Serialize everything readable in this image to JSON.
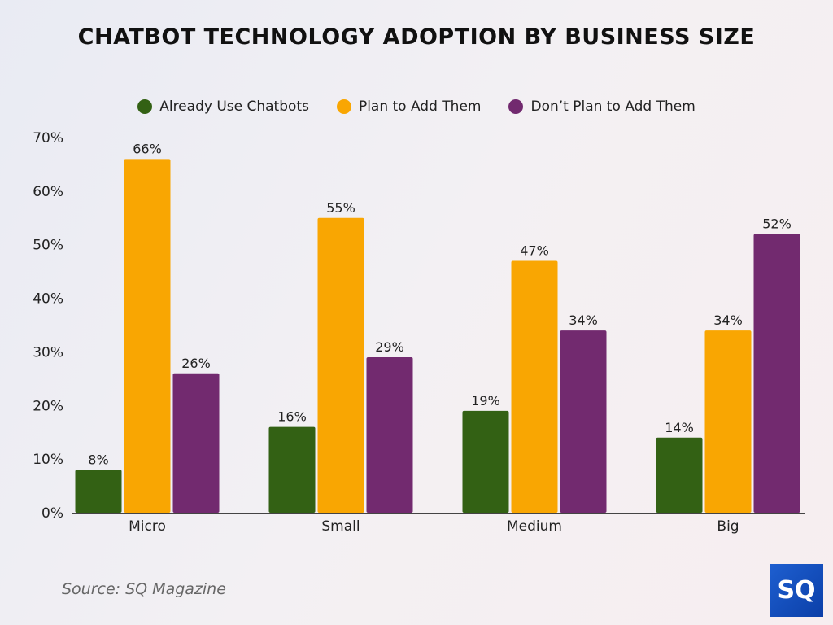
{
  "chart_data": {
    "type": "bar",
    "title": "CHATBOT TECHNOLOGY ADOPTION BY BUSINESS SIZE",
    "categories": [
      "Micro",
      "Small",
      "Medium",
      "Big"
    ],
    "series": [
      {
        "name": "Already Use Chatbots",
        "color": "#336114",
        "values": [
          8,
          16,
          19,
          14
        ]
      },
      {
        "name": "Plan to Add Them",
        "color": "#f9a602",
        "values": [
          66,
          55,
          47,
          34
        ]
      },
      {
        "name": "Don’t Plan to Add Them",
        "color": "#722a6f",
        "values": [
          26,
          29,
          34,
          52
        ]
      }
    ],
    "yticks": [
      "0%",
      "10%",
      "20%",
      "30%",
      "40%",
      "50%",
      "60%",
      "70%"
    ],
    "ylim": [
      0,
      70
    ],
    "grid": false,
    "legend": "top",
    "xlabel": "",
    "ylabel": ""
  },
  "source": "Source: SQ Magazine",
  "logo": "SQ"
}
